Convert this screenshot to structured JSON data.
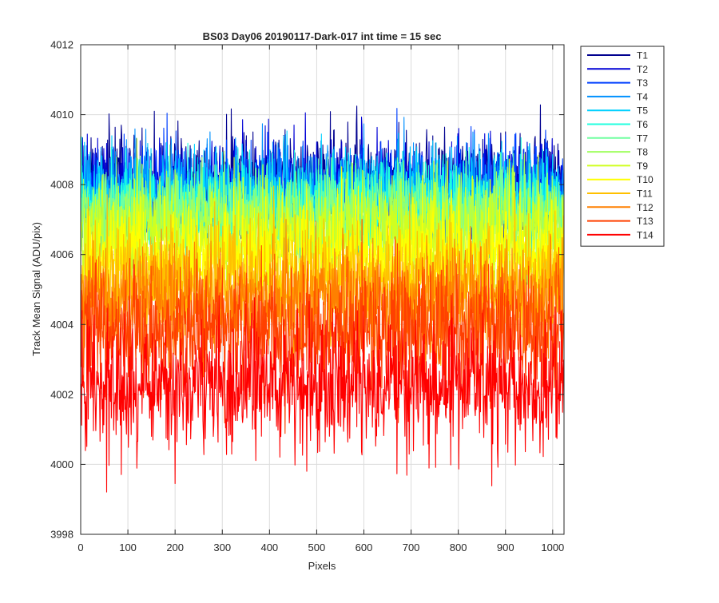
{
  "chart_data": {
    "type": "line",
    "title": "BS03 Day06 20190117-Dark-017 int time = 15 sec",
    "xlabel": "Pixels",
    "ylabel": "Track Mean Signal (ADU/pix)",
    "xlim": [
      0,
      1024
    ],
    "ylim": [
      3998,
      4012
    ],
    "xticks": [
      0,
      100,
      200,
      300,
      400,
      500,
      600,
      700,
      800,
      900,
      1000
    ],
    "yticks": [
      3998,
      4000,
      4002,
      4004,
      4006,
      4008,
      4010,
      4012
    ],
    "grid": true,
    "legend_position": "outside-top-right",
    "series": [
      {
        "name": "T1",
        "color": "#00008f",
        "mean": 4008.1,
        "spread": 0.8
      },
      {
        "name": "T2",
        "color": "#0000d6",
        "mean": 4007.9,
        "spread": 0.8
      },
      {
        "name": "T3",
        "color": "#0040ff",
        "mean": 4007.8,
        "spread": 0.8
      },
      {
        "name": "T4",
        "color": "#0090ff",
        "mean": 4007.7,
        "spread": 0.8
      },
      {
        "name": "T5",
        "color": "#00d0ff",
        "mean": 4007.6,
        "spread": 0.8
      },
      {
        "name": "T6",
        "color": "#20ffdf",
        "mean": 4007.4,
        "spread": 0.8
      },
      {
        "name": "T7",
        "color": "#70ffa0",
        "mean": 4007.2,
        "spread": 0.8
      },
      {
        "name": "T8",
        "color": "#a0ff60",
        "mean": 4006.9,
        "spread": 0.8
      },
      {
        "name": "T9",
        "color": "#d0ff20",
        "mean": 4006.5,
        "spread": 0.9
      },
      {
        "name": "T10",
        "color": "#ffff00",
        "mean": 4006.0,
        "spread": 0.9
      },
      {
        "name": "T11",
        "color": "#ffc000",
        "mean": 4005.3,
        "spread": 1.0
      },
      {
        "name": "T12",
        "color": "#ff8000",
        "mean": 4004.6,
        "spread": 1.0
      },
      {
        "name": "T13",
        "color": "#ff4000",
        "mean": 4003.8,
        "spread": 1.1
      },
      {
        "name": "T14",
        "color": "#ff0000",
        "mean": 4002.3,
        "spread": 1.1
      }
    ]
  }
}
